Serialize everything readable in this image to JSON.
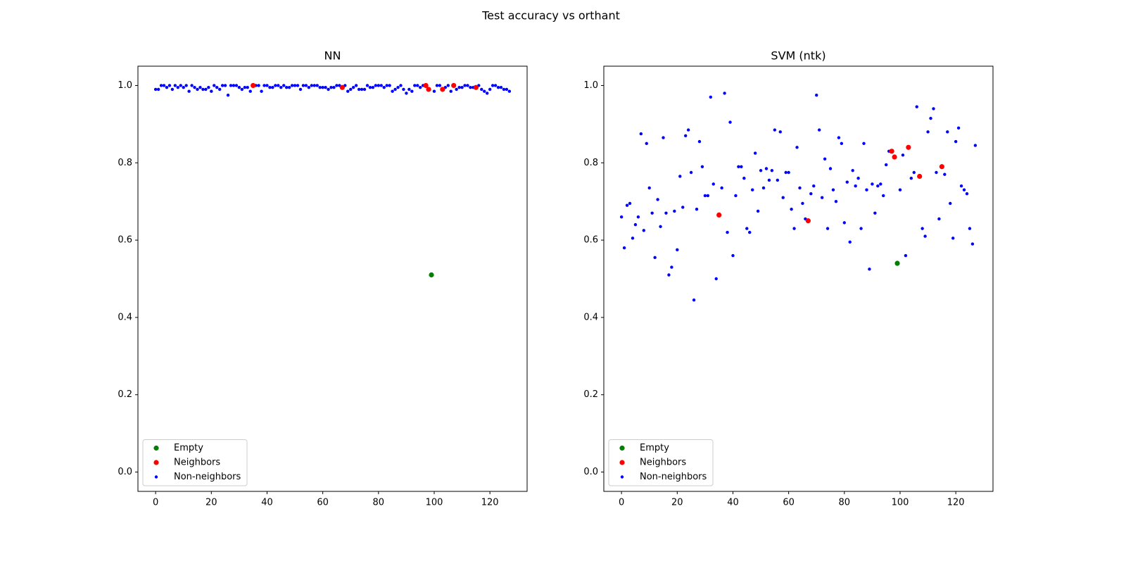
{
  "title": "Test accuracy vs orthant",
  "chart_data": [
    {
      "type": "scatter",
      "title": "NN",
      "xlim": [
        -6.35,
        133.35
      ],
      "ylim": [
        -0.05,
        1.05
      ],
      "xticks": [
        0,
        20,
        40,
        60,
        80,
        100,
        120
      ],
      "yticks": [
        {
          "value": 0,
          "label": "0.0"
        },
        0.2,
        0.4,
        0.6,
        0.8,
        {
          "value": 1,
          "label": "1.0"
        }
      ],
      "legend": "lower left",
      "series": [
        {
          "name": "Empty",
          "color": "#008000",
          "x": [
            99
          ],
          "values": [
            0.51
          ]
        },
        {
          "name": "Neighbors",
          "color": "#ff0000",
          "x": [
            35,
            67,
            97,
            98,
            103,
            107,
            115
          ],
          "values": [
            1.0,
            0.995,
            1.0,
            0.99,
            0.99,
            1.0,
            0.995
          ]
        },
        {
          "name": "Non-neighbors",
          "color": "#0000ff",
          "x": [
            0,
            1,
            2,
            3,
            4,
            5,
            6,
            7,
            8,
            9,
            10,
            11,
            12,
            13,
            14,
            15,
            16,
            17,
            18,
            19,
            20,
            21,
            22,
            23,
            24,
            25,
            26,
            27,
            28,
            29,
            30,
            31,
            32,
            33,
            34,
            36,
            37,
            38,
            39,
            40,
            41,
            42,
            43,
            44,
            45,
            46,
            47,
            48,
            49,
            50,
            51,
            52,
            53,
            54,
            55,
            56,
            57,
            58,
            59,
            60,
            61,
            62,
            63,
            64,
            65,
            66,
            68,
            69,
            70,
            71,
            72,
            73,
            74,
            75,
            76,
            77,
            78,
            79,
            80,
            81,
            82,
            83,
            84,
            85,
            86,
            87,
            88,
            89,
            90,
            91,
            92,
            93,
            94,
            95,
            96,
            100,
            101,
            102,
            104,
            105,
            106,
            108,
            109,
            110,
            111,
            112,
            113,
            114,
            116,
            117,
            118,
            119,
            120,
            121,
            122,
            123,
            124,
            125,
            126,
            127
          ],
          "values": [
            0.99,
            0.99,
            1.0,
            1.0,
            0.995,
            1.0,
            0.99,
            1.0,
            0.995,
            1.0,
            0.995,
            1.0,
            0.985,
            1.0,
            0.995,
            0.99,
            0.995,
            0.99,
            0.99,
            0.995,
            0.985,
            1.0,
            0.995,
            0.99,
            1.0,
            1.0,
            0.975,
            1.0,
            1.0,
            1.0,
            0.995,
            0.99,
            0.995,
            0.995,
            0.985,
            1.0,
            1.0,
            0.985,
            1.0,
            1.0,
            0.995,
            0.995,
            1.0,
            1.0,
            0.995,
            1.0,
            0.995,
            0.995,
            1.0,
            1.0,
            1.0,
            0.99,
            1.0,
            1.0,
            0.995,
            1.0,
            1.0,
            1.0,
            0.995,
            0.995,
            0.995,
            0.99,
            0.995,
            0.995,
            1.0,
            1.0,
            1.0,
            0.985,
            0.99,
            0.995,
            1.0,
            0.99,
            0.99,
            0.99,
            1.0,
            0.995,
            0.995,
            1.0,
            1.0,
            1.0,
            0.995,
            1.0,
            1.0,
            0.985,
            0.99,
            0.995,
            1.0,
            0.99,
            0.98,
            0.99,
            0.985,
            1.0,
            1.0,
            0.995,
            1.0,
            0.985,
            1.0,
            1.0,
            0.995,
            1.0,
            0.985,
            0.99,
            0.995,
            0.995,
            1.0,
            1.0,
            0.995,
            0.995,
            1.0,
            0.99,
            0.985,
            0.98,
            0.99,
            1.0,
            1.0,
            0.995,
            0.995,
            0.99,
            0.99,
            0.985
          ]
        }
      ]
    },
    {
      "type": "scatter",
      "title": "SVM (ntk)",
      "xlim": [
        -6.35,
        133.35
      ],
      "ylim": [
        -0.05,
        1.05
      ],
      "xticks": [
        0,
        20,
        40,
        60,
        80,
        100,
        120
      ],
      "yticks": [
        {
          "value": 0,
          "label": "0.0"
        },
        0.2,
        0.4,
        0.6,
        0.8,
        {
          "value": 1,
          "label": "1.0"
        }
      ],
      "legend": "lower left",
      "series": [
        {
          "name": "Empty",
          "color": "#008000",
          "x": [
            99
          ],
          "values": [
            0.54
          ]
        },
        {
          "name": "Neighbors",
          "color": "#ff0000",
          "x": [
            35,
            67,
            97,
            98,
            103,
            107,
            115
          ],
          "values": [
            0.665,
            0.65,
            0.83,
            0.815,
            0.84,
            0.765,
            0.79
          ]
        },
        {
          "name": "Non-neighbors",
          "color": "#0000ff",
          "x": [
            0,
            1,
            2,
            3,
            4,
            5,
            6,
            7,
            8,
            9,
            10,
            11,
            12,
            13,
            14,
            15,
            16,
            17,
            18,
            19,
            20,
            21,
            22,
            23,
            24,
            25,
            26,
            27,
            28,
            29,
            30,
            31,
            32,
            33,
            34,
            36,
            37,
            38,
            39,
            40,
            41,
            42,
            43,
            44,
            45,
            46,
            47,
            48,
            49,
            50,
            51,
            52,
            53,
            54,
            55,
            56,
            57,
            58,
            59,
            60,
            61,
            62,
            63,
            64,
            65,
            66,
            68,
            69,
            70,
            71,
            72,
            73,
            74,
            75,
            76,
            77,
            78,
            79,
            80,
            81,
            82,
            83,
            84,
            85,
            86,
            87,
            88,
            89,
            90,
            91,
            92,
            93,
            94,
            95,
            96,
            100,
            101,
            102,
            104,
            105,
            106,
            108,
            109,
            110,
            111,
            112,
            113,
            114,
            116,
            117,
            118,
            119,
            120,
            121,
            122,
            123,
            124,
            125,
            126,
            127
          ],
          "values": [
            0.66,
            0.58,
            0.69,
            0.695,
            0.605,
            0.64,
            0.66,
            0.875,
            0.625,
            0.85,
            0.735,
            0.67,
            0.555,
            0.705,
            0.635,
            0.865,
            0.67,
            0.51,
            0.53,
            0.675,
            0.575,
            0.765,
            0.685,
            0.87,
            0.885,
            0.775,
            0.445,
            0.68,
            0.855,
            0.79,
            0.715,
            0.715,
            0.97,
            0.745,
            0.5,
            0.735,
            0.98,
            0.62,
            0.905,
            0.56,
            0.715,
            0.79,
            0.79,
            0.76,
            0.63,
            0.62,
            0.73,
            0.825,
            0.675,
            0.78,
            0.735,
            0.785,
            0.755,
            0.78,
            0.885,
            0.755,
            0.88,
            0.71,
            0.775,
            0.775,
            0.68,
            0.63,
            0.84,
            0.735,
            0.695,
            0.655,
            0.72,
            0.74,
            0.975,
            0.885,
            0.71,
            0.81,
            0.63,
            0.785,
            0.73,
            0.7,
            0.865,
            0.85,
            0.645,
            0.75,
            0.595,
            0.78,
            0.74,
            0.76,
            0.63,
            0.85,
            0.73,
            0.525,
            0.745,
            0.67,
            0.74,
            0.745,
            0.715,
            0.795,
            0.83,
            0.73,
            0.82,
            0.56,
            0.76,
            0.775,
            0.945,
            0.63,
            0.61,
            0.88,
            0.915,
            0.94,
            0.775,
            0.655,
            0.77,
            0.88,
            0.695,
            0.605,
            0.855,
            0.89,
            0.74,
            0.73,
            0.72,
            0.63,
            0.59,
            0.845
          ]
        }
      ]
    }
  ]
}
